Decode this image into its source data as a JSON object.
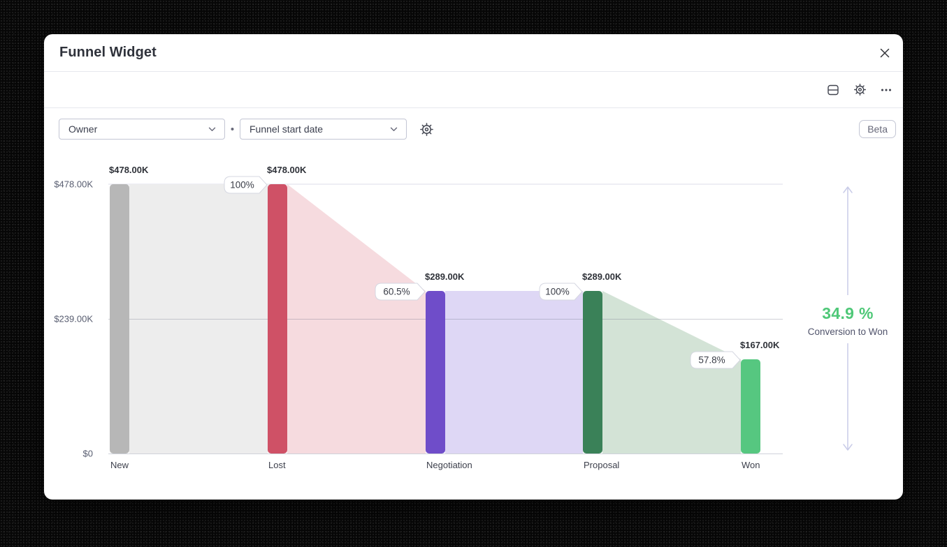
{
  "window": {
    "title": "Funnel Widget"
  },
  "toolbar": {
    "icons": [
      "split-view",
      "settings",
      "more-options"
    ]
  },
  "filters": {
    "owner_label": "Owner",
    "separator": "•",
    "date_label": "Funnel start date",
    "beta_label": "Beta"
  },
  "chart_data": {
    "type": "bar",
    "variant": "funnel",
    "title": "",
    "categories": [
      "New",
      "Lost",
      "Negotiation",
      "Proposal",
      "Won"
    ],
    "values": [
      478000,
      478000,
      289000,
      289000,
      167000
    ],
    "value_labels": [
      "$478.00K",
      "$478.00K",
      "$289.00K",
      "$289.00K",
      "$167.00K"
    ],
    "conversion_labels": [
      "100%",
      "60.5%",
      "100%",
      "57.8%"
    ],
    "bar_colors": [
      "#b7b7b7",
      "#cf5166",
      "#6f4dc9",
      "#3a8158",
      "#56c780"
    ],
    "fill_colors": [
      "#ededed",
      "#f6dbdf",
      "#ded7f5",
      "#d3e3d6"
    ],
    "y_ticks": [
      {
        "label": "$478.00K",
        "value": 478000
      },
      {
        "label": "$239.00K",
        "value": 239000
      },
      {
        "label": "$0",
        "value": 0
      }
    ],
    "ylim": [
      0,
      478000
    ],
    "grid": true,
    "summary": {
      "value": "34.9 %",
      "label": "Conversion to Won",
      "color": "#4fc878"
    }
  }
}
